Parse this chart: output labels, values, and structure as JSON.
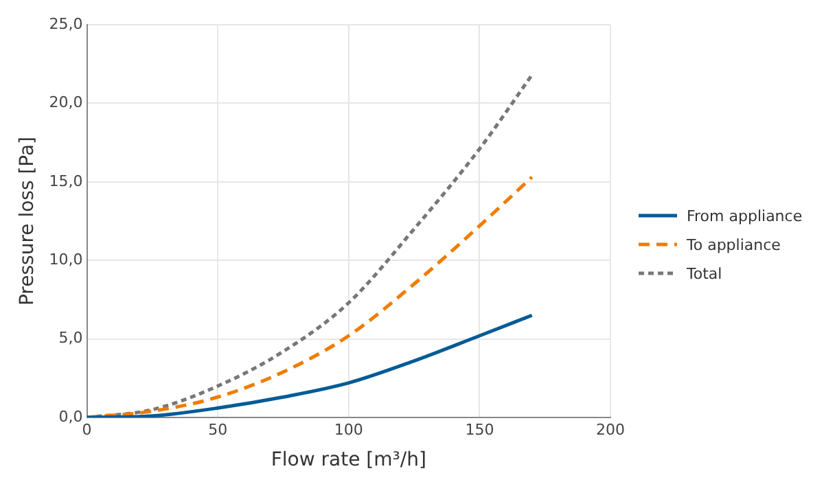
{
  "chart_data": {
    "type": "line",
    "xlabel": "Flow rate [m³/h]",
    "ylabel": "Pressure loss [Pa]",
    "x": [
      0,
      25,
      50,
      75,
      100,
      125,
      150,
      170
    ],
    "series": [
      {
        "name": "From appliance",
        "color": "#005b96",
        "line_style": "solid",
        "values": [
          0,
          0.1,
          0.6,
          1.3,
          2.2,
          3.6,
          5.2,
          6.5
        ]
      },
      {
        "name": "To appliance",
        "color": "#ef7d00",
        "line_style": "dashed",
        "values": [
          0,
          0.4,
          1.3,
          2.9,
          5.2,
          8.5,
          12.2,
          15.3
        ]
      },
      {
        "name": "Total",
        "color": "#76777a",
        "line_style": "dotted",
        "values": [
          0,
          0.5,
          2.0,
          4.2,
          7.3,
          12.0,
          17.1,
          21.8
        ]
      }
    ],
    "xlim": [
      0,
      200
    ],
    "xticks": [
      0,
      50,
      100,
      150,
      200
    ],
    "ylim": [
      0,
      25
    ],
    "yticks": [
      {
        "value": 0,
        "label": "0,0"
      },
      {
        "value": 5,
        "label": "5,0"
      },
      {
        "value": 10,
        "label": "10,0"
      },
      {
        "value": 15,
        "label": "15,0"
      },
      {
        "value": 20,
        "label": "20,0"
      },
      {
        "value": 25,
        "label": "25,0"
      }
    ],
    "grid": true,
    "legend": "right",
    "marker": "none"
  }
}
